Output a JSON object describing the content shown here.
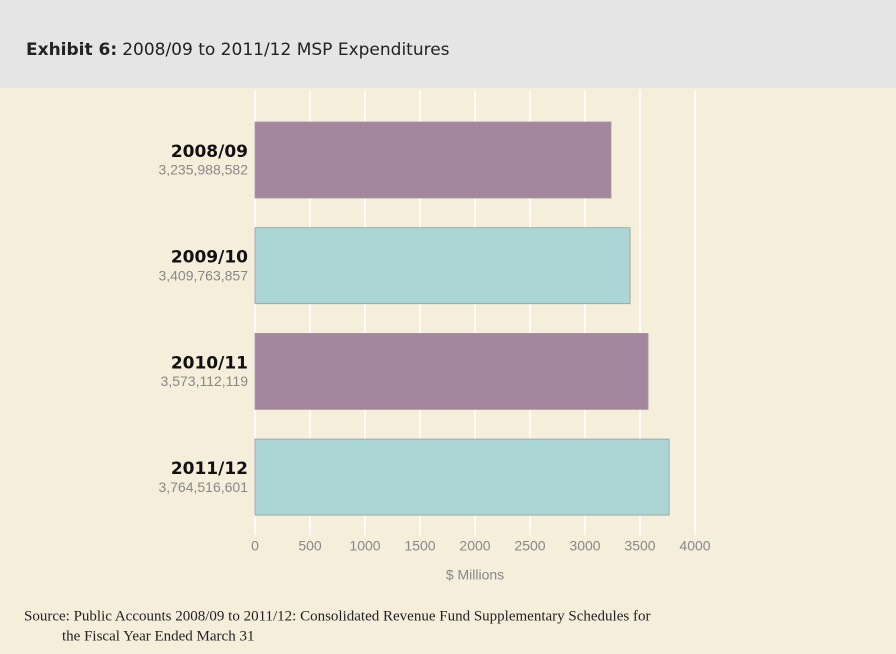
{
  "chart_data": {
    "type": "barh",
    "title_prefix": "Exhibit 6:",
    "title": "2008/09 to 2011/12 MSP Expenditures",
    "categories": [
      "2008/09",
      "2009/10",
      "2010/11",
      "2011/12"
    ],
    "values": [
      3235.988582,
      3409.763857,
      3573.112119,
      3764.516601
    ],
    "value_labels": [
      "3,235,988,582",
      "3,409,763,857",
      "3,573,112,119",
      "3,764,516,601"
    ],
    "colors": [
      "#a4869f",
      "#acd6d5",
      "#a4869f",
      "#acd6d5"
    ],
    "xlim": [
      0,
      4000
    ],
    "xticks": [
      0,
      500,
      1000,
      1500,
      2000,
      2500,
      3000,
      3500,
      4000
    ],
    "xlabel": "$ Millions",
    "grid": true,
    "source": "Source: Public Accounts 2008/09 to 2011/12: Consolidated Revenue Fund Supplementary Schedules for",
    "source_cont": "the Fiscal Year Ended March 31"
  }
}
